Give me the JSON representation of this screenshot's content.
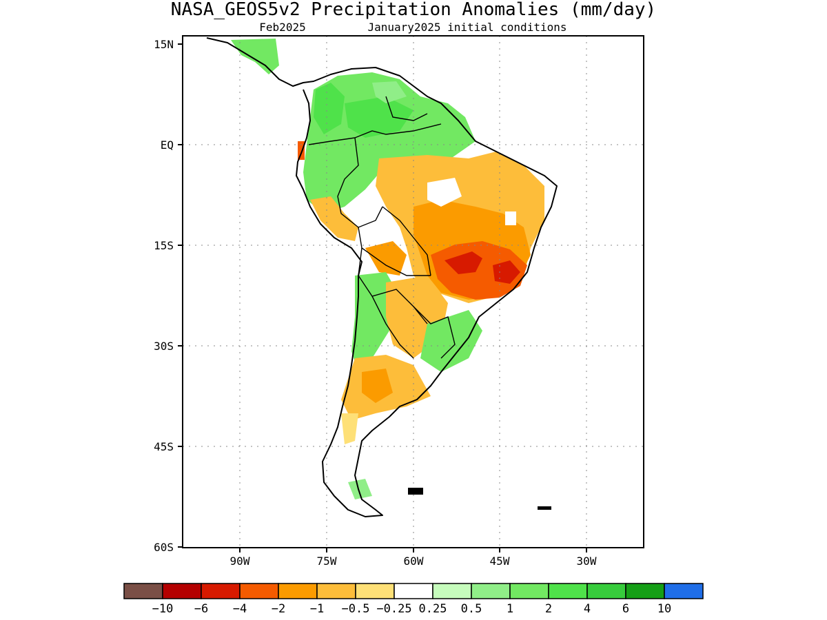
{
  "map": {
    "title": "NASA_GEOS5v2 Precipitation Anomalies (mm/day)",
    "subtitle_left": "Feb2025",
    "subtitle_right": "January2025 initial conditions",
    "y_ticks": [
      "15N",
      "EQ",
      "15S",
      "30S",
      "45S",
      "60S"
    ],
    "x_ticks": [
      "90W",
      "75W",
      "60W",
      "45W",
      "30W"
    ],
    "colors": {
      "lt10": "#7a4f46",
      "n10": "#b40000",
      "n6": "#d71a00",
      "n4": "#f55b00",
      "n2": "#fb9b00",
      "n1": "#fdbd3a",
      "n05": "#fee077",
      "zero": "#ffffff",
      "p025": "#c6fcbc",
      "p05": "#90ee88",
      "p1": "#72e862",
      "p2": "#4fe24a",
      "p4": "#37cc3c",
      "p6": "#159f16",
      "p10": "#1f6ee8"
    }
  },
  "colorbar": {
    "labels": [
      "−10",
      "−6",
      "−4",
      "−2",
      "−1",
      "−0.5",
      "−0.25",
      "0.25",
      "0.5",
      "1",
      "2",
      "4",
      "6",
      "10"
    ],
    "colors": [
      "#7a4f46",
      "#b40000",
      "#d71a00",
      "#f55b00",
      "#fb9b00",
      "#fdbd3a",
      "#fee077",
      "#ffffff",
      "#c6fcbc",
      "#90ee88",
      "#72e862",
      "#4fe24a",
      "#37cc3c",
      "#159f16",
      "#1f6ee8"
    ]
  }
}
